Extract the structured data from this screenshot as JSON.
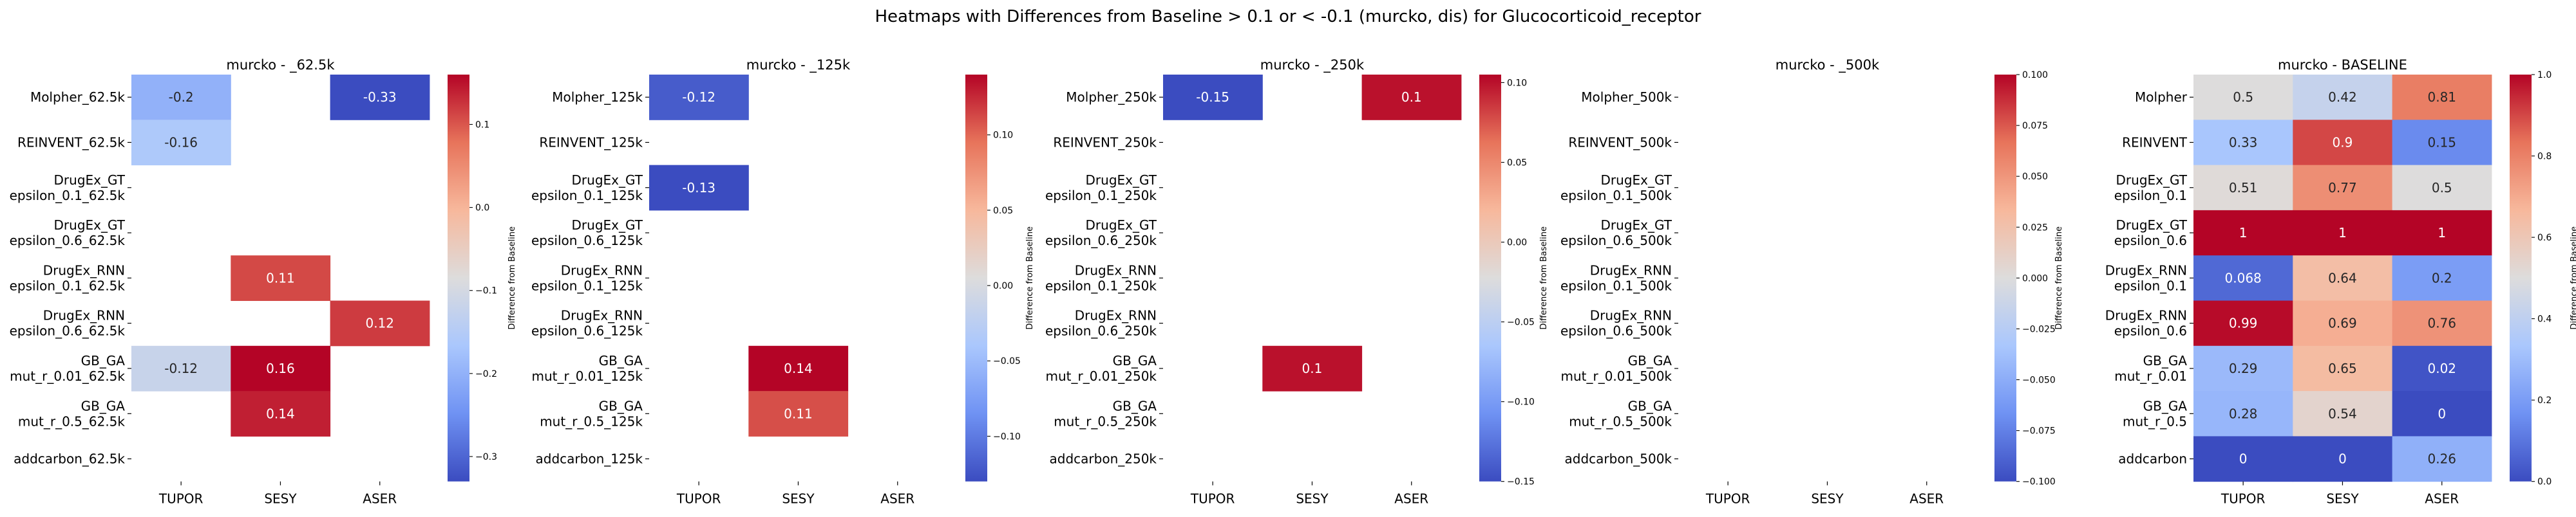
{
  "suptitle": "Heatmaps with Differences from Baseline > 0.1 or < -0.1 (murcko, dis) for Glucocorticoid_receptor",
  "colormap": {
    "name": "coolwarm",
    "stops": [
      "#3b4cc0",
      "#6f92f3",
      "#aac7fd",
      "#dddcdc",
      "#f7b89c",
      "#e7745b",
      "#b40426"
    ]
  },
  "chart_data": [
    {
      "type": "heatmap",
      "title": "murcko - _62.5k",
      "x_categories": [
        "TUPOR",
        "SESY",
        "ASER"
      ],
      "y_categories": [
        "Molpher_62.5k",
        "REINVENT_62.5k",
        "DrugEx_GT\nepsilon_0.1_62.5k",
        "DrugEx_GT\nepsilon_0.6_62.5k",
        "DrugEx_RNN\nepsilon_0.1_62.5k",
        "DrugEx_RNN\nepsilon_0.6_62.5k",
        "GB_GA\nmut_r_0.01_62.5k",
        "GB_GA\nmut_r_0.5_62.5k",
        "addcarbon_62.5k"
      ],
      "values": [
        [
          -0.2,
          null,
          -0.33
        ],
        [
          -0.16,
          null,
          null
        ],
        [
          null,
          null,
          null
        ],
        [
          null,
          null,
          null
        ],
        [
          null,
          0.11,
          null
        ],
        [
          null,
          null,
          0.12
        ],
        [
          -0.12,
          0.16,
          null
        ],
        [
          null,
          0.14,
          null
        ],
        [
          null,
          null,
          null
        ]
      ],
      "vmin": -0.33,
      "vmax": 0.16,
      "colorbar_ticks": [
        0.1,
        0.0,
        -0.1,
        -0.2,
        -0.3
      ],
      "colorbar_tick_labels": [
        "0.1",
        "0.0",
        "−0.1",
        "−0.2",
        "−0.3"
      ],
      "colorbar_label": "Difference from Baseline"
    },
    {
      "type": "heatmap",
      "title": "murcko - _125k",
      "x_categories": [
        "TUPOR",
        "SESY",
        "ASER"
      ],
      "y_categories": [
        "Molpher_125k",
        "REINVENT_125k",
        "DrugEx_GT\nepsilon_0.1_125k",
        "DrugEx_GT\nepsilon_0.6_125k",
        "DrugEx_RNN\nepsilon_0.1_125k",
        "DrugEx_RNN\nepsilon_0.6_125k",
        "GB_GA\nmut_r_0.01_125k",
        "GB_GA\nmut_r_0.5_125k",
        "addcarbon_125k"
      ],
      "values": [
        [
          -0.12,
          null,
          null
        ],
        [
          null,
          null,
          null
        ],
        [
          -0.13,
          null,
          null
        ],
        [
          null,
          null,
          null
        ],
        [
          null,
          null,
          null
        ],
        [
          null,
          null,
          null
        ],
        [
          null,
          0.14,
          null
        ],
        [
          null,
          0.11,
          null
        ],
        [
          null,
          null,
          null
        ]
      ],
      "vmin": -0.13,
      "vmax": 0.14,
      "colorbar_ticks": [
        0.1,
        0.05,
        0.0,
        -0.05,
        -0.1
      ],
      "colorbar_tick_labels": [
        "0.10",
        "0.05",
        "0.00",
        "−0.05",
        "−0.10"
      ],
      "colorbar_label": "Difference from Baseline"
    },
    {
      "type": "heatmap",
      "title": "murcko - _250k",
      "x_categories": [
        "TUPOR",
        "SESY",
        "ASER"
      ],
      "y_categories": [
        "Molpher_250k",
        "REINVENT_250k",
        "DrugEx_GT\nepsilon_0.1_250k",
        "DrugEx_GT\nepsilon_0.6_250k",
        "DrugEx_RNN\nepsilon_0.1_250k",
        "DrugEx_RNN\nepsilon_0.6_250k",
        "GB_GA\nmut_r_0.01_250k",
        "GB_GA\nmut_r_0.5_250k",
        "addcarbon_250k"
      ],
      "values": [
        [
          -0.15,
          null,
          0.1
        ],
        [
          null,
          null,
          null
        ],
        [
          null,
          null,
          null
        ],
        [
          null,
          null,
          null
        ],
        [
          null,
          null,
          null
        ],
        [
          null,
          null,
          null
        ],
        [
          null,
          0.1,
          null
        ],
        [
          null,
          null,
          null
        ],
        [
          null,
          null,
          null
        ]
      ],
      "vmin": -0.15,
      "vmax": 0.105,
      "colorbar_ticks": [
        0.1,
        0.05,
        0.0,
        -0.05,
        -0.1,
        -0.15
      ],
      "colorbar_tick_labels": [
        "0.10",
        "0.05",
        "0.00",
        "−0.05",
        "−0.10",
        "−0.15"
      ],
      "colorbar_label": "Difference from Baseline"
    },
    {
      "type": "heatmap",
      "title": "murcko - _500k",
      "x_categories": [
        "TUPOR",
        "SESY",
        "ASER"
      ],
      "y_categories": [
        "Molpher_500k",
        "REINVENT_500k",
        "DrugEx_GT\nepsilon_0.1_500k",
        "DrugEx_GT\nepsilon_0.6_500k",
        "DrugEx_RNN\nepsilon_0.1_500k",
        "DrugEx_RNN\nepsilon_0.6_500k",
        "GB_GA\nmut_r_0.01_500k",
        "GB_GA\nmut_r_0.5_500k",
        "addcarbon_500k"
      ],
      "values": [
        [
          null,
          null,
          null
        ],
        [
          null,
          null,
          null
        ],
        [
          null,
          null,
          null
        ],
        [
          null,
          null,
          null
        ],
        [
          null,
          null,
          null
        ],
        [
          null,
          null,
          null
        ],
        [
          null,
          null,
          null
        ],
        [
          null,
          null,
          null
        ],
        [
          null,
          null,
          null
        ]
      ],
      "vmin": -0.1,
      "vmax": 0.1,
      "colorbar_ticks": [
        0.1,
        0.075,
        0.05,
        0.025,
        0.0,
        -0.025,
        -0.05,
        -0.075,
        -0.1
      ],
      "colorbar_tick_labels": [
        "0.100",
        "0.075",
        "0.050",
        "0.025",
        "0.000",
        "−0.025",
        "−0.050",
        "−0.075",
        "−0.100"
      ],
      "colorbar_label": "Difference from Baseline"
    },
    {
      "type": "heatmap",
      "title": "murcko - BASELINE",
      "x_categories": [
        "TUPOR",
        "SESY",
        "ASER"
      ],
      "y_categories": [
        "Molpher",
        "REINVENT",
        "DrugEx_GT\nepsilon_0.1",
        "DrugEx_GT\nepsilon_0.6",
        "DrugEx_RNN\nepsilon_0.1",
        "DrugEx_RNN\nepsilon_0.6",
        "GB_GA\nmut_r_0.01",
        "GB_GA\nmut_r_0.5",
        "addcarbon"
      ],
      "values": [
        [
          0.5,
          0.42,
          0.81
        ],
        [
          0.33,
          0.9,
          0.15
        ],
        [
          0.51,
          0.77,
          0.5
        ],
        [
          1,
          1,
          1
        ],
        [
          0.068,
          0.64,
          0.2
        ],
        [
          0.99,
          0.69,
          0.76
        ],
        [
          0.29,
          0.65,
          0.02
        ],
        [
          0.28,
          0.54,
          0
        ],
        [
          0,
          0,
          0.26
        ]
      ],
      "vmin": 0.0,
      "vmax": 1.0,
      "colorbar_ticks": [
        1.0,
        0.8,
        0.6,
        0.4,
        0.2,
        0.0
      ],
      "colorbar_tick_labels": [
        "1.0",
        "0.8",
        "0.6",
        "0.4",
        "0.2",
        "0.0"
      ],
      "colorbar_label": "Difference from Baseline"
    }
  ]
}
